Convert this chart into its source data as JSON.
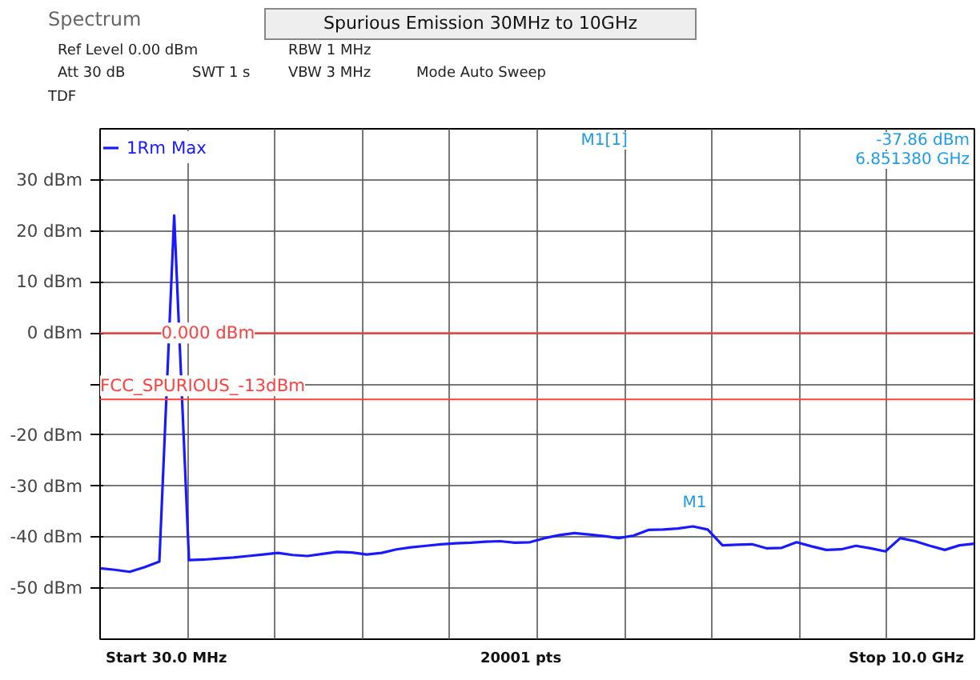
{
  "chart_data": {
    "type": "line",
    "title": "Spurious Emission 30MHz to 10GHz",
    "categories": [
      null,
      null,
      null,
      null,
      null,
      null,
      null,
      null,
      null,
      null,
      null,
      null,
      null,
      null,
      null,
      null,
      null,
      null,
      null,
      null,
      null,
      null,
      null,
      null,
      null,
      null,
      null,
      null,
      null,
      null,
      null,
      null,
      null,
      null,
      null,
      null,
      null,
      null,
      null,
      null,
      null,
      null,
      null,
      null,
      null,
      null,
      null,
      null,
      null,
      null,
      null,
      null,
      null,
      null,
      null,
      null,
      null,
      null,
      null,
      null
    ],
    "ylim": [
      -60,
      40
    ],
    "yticks": [
      {
        "value": 30,
        "label": "30 dBm"
      },
      {
        "value": 20,
        "label": "20 dBm"
      },
      {
        "value": 10,
        "label": "10 dBm"
      },
      {
        "value": 0,
        "label": "0 dBm"
      },
      {
        "value": -10,
        "label": null
      },
      {
        "value": -20,
        "label": "-20 dBm"
      },
      {
        "value": -30,
        "label": "-30 dBm"
      },
      {
        "value": -40,
        "label": "-40 dBm"
      },
      {
        "value": -50,
        "label": "-50 dBm"
      }
    ],
    "tick_labels": "y",
    "grid": true,
    "legend": "top left",
    "line_style": "solid",
    "series": [
      {
        "name": "1Rm Max",
        "color": "#1a1aff",
        "values": [
          -46.1,
          -46.4,
          -46.8,
          -45.9,
          -44.8,
          23,
          -44.5,
          -44.4,
          -44.2,
          -44.0,
          -43.7,
          -43.4,
          -43.1,
          -43.5,
          -43.7,
          -43.3,
          -42.9,
          -43.0,
          -43.4,
          -43.1,
          -42.4,
          -42.0,
          -41.7,
          -41.4,
          -41.2,
          -41.1,
          -40.9,
          -40.8,
          -41.1,
          -41.0,
          -40.2,
          -39.6,
          -39.2,
          -39.5,
          -39.8,
          -40.2,
          -39.7,
          -38.6,
          -38.5,
          -38.3,
          -37.9,
          -38.5,
          -41.6,
          -41.5,
          -41.4,
          -42.2,
          -42.1,
          -41.0,
          -41.8,
          -42.5,
          -42.4,
          -41.7,
          -42.2,
          -42.8,
          -40.2,
          -40.8,
          -41.7,
          -42.5,
          -41.6,
          -41.3
        ]
      }
    ],
    "ref_lines": [
      {
        "axis": "y",
        "value": 0,
        "label": "0.000 dBm",
        "color": "#ff4040"
      },
      {
        "axis": "y",
        "value": -13,
        "label": "FCC_SPURIOUS_-13dBm",
        "color": "#ff4040"
      }
    ],
    "annotations": [
      "Spectrum",
      "Ref Level 0.00 dBm",
      "Att 30 dB",
      "SWT 1 s",
      "RBW 1 MHz",
      "VBW 3 MHz",
      "Mode Auto Sweep",
      "TDF",
      "M1[1]",
      "-37.86 dBm",
      "6.851380 GHz",
      "M1",
      "Start 30.0 MHz",
      "20001 pts",
      "Stop 10.0 GHz"
    ]
  }
}
